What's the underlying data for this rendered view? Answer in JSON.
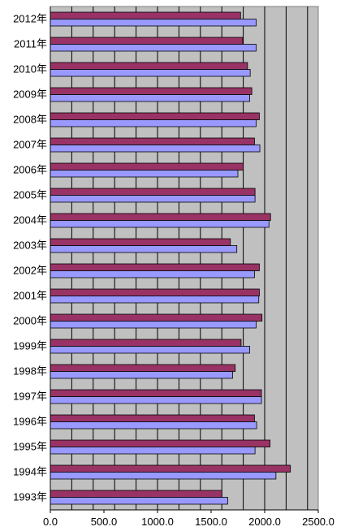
{
  "chart_data": {
    "type": "bar",
    "orientation": "horizontal",
    "categories": [
      "2012年",
      "2011年",
      "2010年",
      "2009年",
      "2008年",
      "2007年",
      "2006年",
      "2005年",
      "2004年",
      "2003年",
      "2002年",
      "2001年",
      "2000年",
      "1999年",
      "1998年",
      "1997年",
      "1996年",
      "1995年",
      "1994年",
      "1993年"
    ],
    "series": [
      {
        "color": "#993366",
        "values": [
          1775,
          1795,
          1840,
          1880,
          1950,
          1905,
          1800,
          1910,
          2055,
          1680,
          1950,
          1950,
          1975,
          1780,
          1725,
          1970,
          1905,
          2050,
          2240,
          1600
        ]
      },
      {
        "color": "#9999ff",
        "values": [
          1920,
          1920,
          1865,
          1860,
          1920,
          1955,
          1750,
          1910,
          2040,
          1740,
          1905,
          1945,
          1920,
          1860,
          1700,
          1970,
          1925,
          1910,
          2105,
          1655
        ]
      }
    ],
    "x_ticks": [
      "0.0",
      "500.0",
      "1000.0",
      "1500.0",
      "2000.0",
      "2500.0"
    ],
    "xlim": [
      0,
      2500
    ],
    "grid": true,
    "plot_background": "#c0c0c0",
    "legend": "none"
  }
}
